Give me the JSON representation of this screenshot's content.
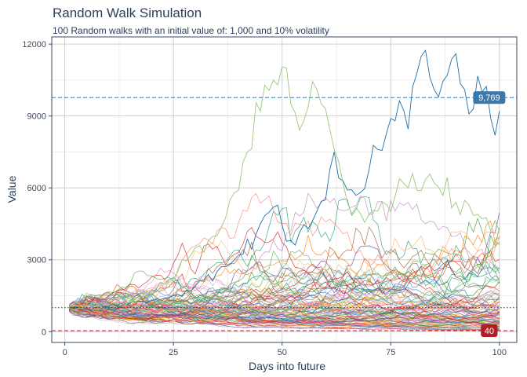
{
  "title": "Random Walk Simulation",
  "subtitle": "100 Random walks with an initial value of: 1,000 and 10% volatility",
  "chart_data": {
    "type": "line",
    "xlabel": "Days into future",
    "ylabel": "Value",
    "xlim": [
      -3,
      104
    ],
    "ylim": [
      -450,
      12300
    ],
    "x_ticks": [
      0,
      25,
      50,
      75,
      100
    ],
    "x_tick_labels": [
      "0",
      "25",
      "50",
      "75",
      "100"
    ],
    "y_ticks": [
      0,
      3000,
      6000,
      9000,
      12000
    ],
    "y_tick_labels": [
      "0",
      "3000",
      "6000",
      "9000",
      "12000"
    ],
    "grid": true,
    "n_walks": 100,
    "days": 100,
    "initial_value": 1000,
    "volatility": 0.1,
    "reference_lines": [
      {
        "value": 9769,
        "label": "9,769",
        "color": "#3c78aa",
        "style": "dashed"
      },
      {
        "value": 1000,
        "color": "#333333",
        "style": "dotted"
      },
      {
        "value": 40,
        "label": "40",
        "color": "#b01e24",
        "style": "dashed"
      }
    ],
    "highlight_series": [
      {
        "name": "",
        "color": "#1f6fa8",
        "x": [
          1,
          5,
          10,
          15,
          20,
          25,
          30,
          35,
          40,
          45,
          48,
          52,
          56,
          60,
          62,
          64,
          68,
          72,
          76,
          80,
          82,
          84,
          86,
          88,
          90,
          92,
          94,
          96,
          98,
          100
        ],
        "values": [
          1000,
          950,
          1050,
          1200,
          1300,
          1500,
          1900,
          2500,
          3200,
          4500,
          5200,
          3800,
          4300,
          5500,
          7500,
          6300,
          5800,
          7600,
          8800,
          10200,
          11500,
          10600,
          9800,
          10700,
          11600,
          10100,
          9300,
          10000,
          8900,
          9200
        ]
      },
      {
        "name": "",
        "color": "#98c879",
        "x": [
          1,
          10,
          20,
          25,
          30,
          35,
          38,
          42,
          45,
          48,
          50,
          52,
          55,
          58,
          60,
          62,
          65,
          70,
          75,
          80,
          85,
          90,
          95,
          100
        ],
        "values": [
          1000,
          1100,
          1500,
          2200,
          3500,
          4000,
          5500,
          7500,
          9200,
          10500,
          11050,
          9500,
          8800,
          10100,
          9300,
          7600,
          5400,
          4900,
          5000,
          6600,
          6200,
          5400,
          4900,
          4200
        ]
      }
    ]
  }
}
